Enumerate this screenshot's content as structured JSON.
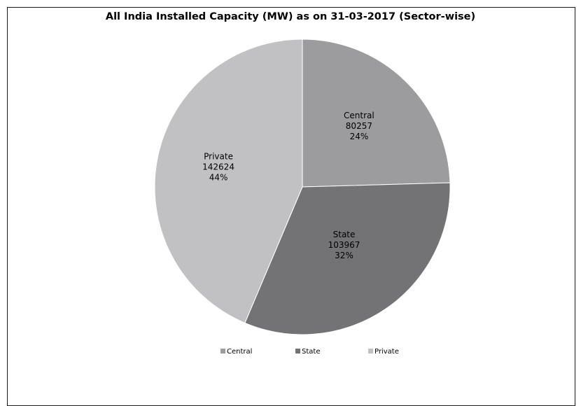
{
  "chart_data": {
    "type": "pie",
    "title": "All India Installed Capacity (MW) as on 31-03-2017 (Sector-wise)",
    "slices": [
      {
        "name": "Central",
        "value": 80257,
        "percent": "24%",
        "color": "#9c9c9e"
      },
      {
        "name": "State",
        "value": 103967,
        "percent": "32%",
        "color": "#737375"
      },
      {
        "name": "Private",
        "value": 142624,
        "percent": "44%",
        "color": "#c1c1c3"
      }
    ],
    "legend_position": "bottom",
    "start": "12 o'clock, clockwise"
  }
}
